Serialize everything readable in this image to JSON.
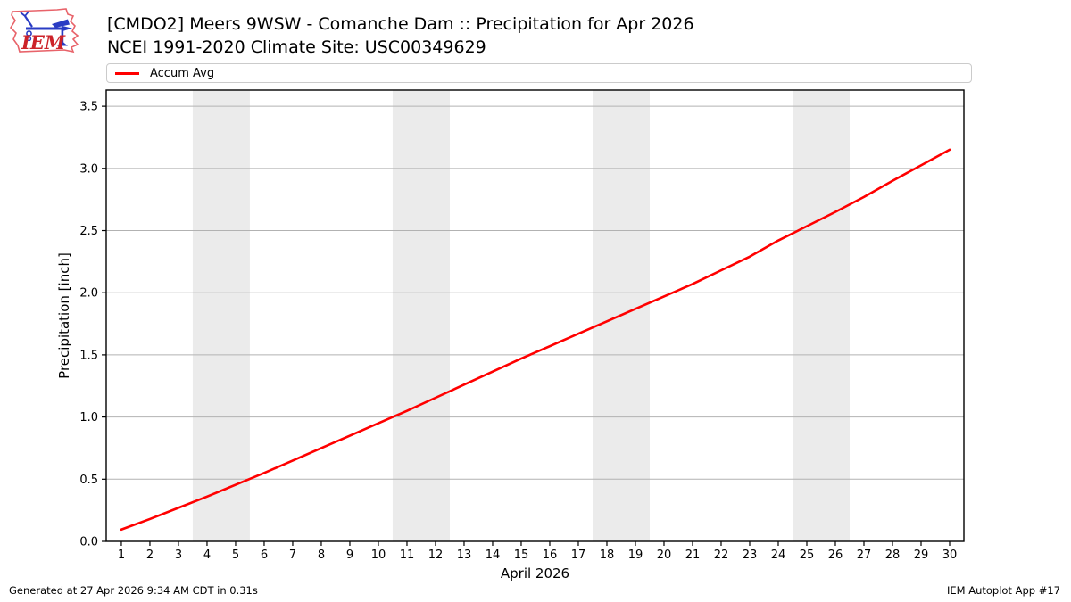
{
  "header": {
    "logo_text": "IEM",
    "title": "[CMDO2] Meers 9WSW - Comanche Dam :: Precipitation for Apr 2026",
    "subtitle": "NCEI 1991-2020 Climate Site: USC00349629"
  },
  "legend": {
    "position": "top",
    "items": [
      {
        "label": "Accum Avg",
        "color": "#ff0000"
      }
    ]
  },
  "footer": {
    "left": "Generated at 27 Apr 2026 9:34 AM CDT in 0.31s",
    "right": "IEM Autoplot App #17"
  },
  "chart_data": {
    "type": "line",
    "title": "[CMDO2] Meers 9WSW - Comanche Dam :: Precipitation for Apr 2026",
    "subtitle": "NCEI 1991-2020 Climate Site: USC00349629",
    "xlabel": "April 2026",
    "ylabel": "Precipitation [inch]",
    "x": [
      1,
      2,
      3,
      4,
      5,
      6,
      7,
      8,
      9,
      10,
      11,
      12,
      13,
      14,
      15,
      16,
      17,
      18,
      19,
      20,
      21,
      22,
      23,
      24,
      25,
      26,
      27,
      28,
      29,
      30
    ],
    "series": [
      {
        "name": "Accum Avg",
        "color": "#ff0000",
        "line_width": 2.6,
        "values": [
          0.095,
          0.18,
          0.27,
          0.36,
          0.455,
          0.55,
          0.65,
          0.75,
          0.85,
          0.95,
          1.05,
          1.155,
          1.26,
          1.365,
          1.47,
          1.57,
          1.67,
          1.77,
          1.87,
          1.97,
          2.07,
          2.18,
          2.29,
          2.42,
          2.535,
          2.65,
          2.77,
          2.9,
          3.025,
          3.15
        ]
      }
    ],
    "xlim": [
      0.47,
      30.5
    ],
    "ylim": [
      0,
      3.63
    ],
    "xticks": [
      1,
      2,
      3,
      4,
      5,
      6,
      7,
      8,
      9,
      10,
      11,
      12,
      13,
      14,
      15,
      16,
      17,
      18,
      19,
      20,
      21,
      22,
      23,
      24,
      25,
      26,
      27,
      28,
      29,
      30
    ],
    "yticks": [
      0.0,
      0.5,
      1.0,
      1.5,
      2.0,
      2.5,
      3.0,
      3.5
    ],
    "ytick_labels": [
      "0.0",
      "0.5",
      "1.0",
      "1.5",
      "2.0",
      "2.5",
      "3.0",
      "3.5"
    ],
    "grid": "horizontal-only",
    "gridline_color": "#b2b2b2",
    "weekend_bands": [
      [
        3.5,
        5.5
      ],
      [
        10.5,
        12.5
      ],
      [
        17.5,
        19.5
      ],
      [
        24.5,
        26.5
      ]
    ],
    "band_color": "#ebebeb",
    "spine_color": "#000000",
    "legend_position": "top"
  }
}
